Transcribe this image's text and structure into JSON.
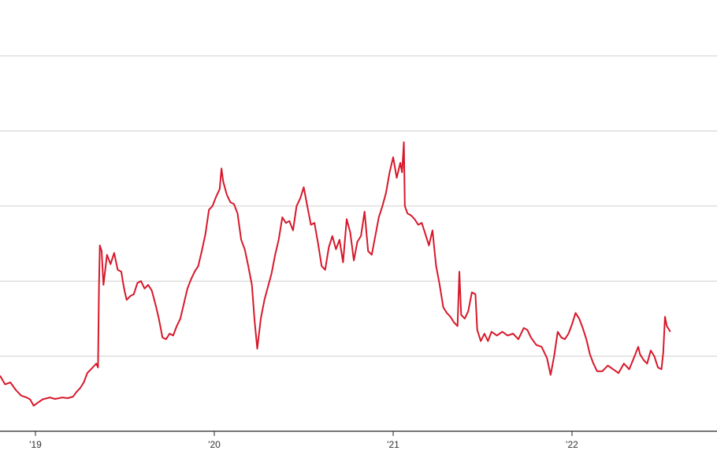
{
  "chart_data": {
    "type": "line",
    "title": "",
    "xlabel": "",
    "ylabel": "",
    "x_tick_labels": [
      "'19",
      "'20",
      "'21",
      "'22"
    ],
    "ylim": [
      0,
      100
    ],
    "grid": "horizontal",
    "colors": {
      "line": "#d7182a",
      "grid": "#cfcfcf",
      "axis": "#222222",
      "background": "#ffffff"
    },
    "series": [
      {
        "values": [
          [
            2018.8,
            14.8
          ],
          [
            2018.83,
            12.5
          ],
          [
            2018.86,
            13.0
          ],
          [
            2018.89,
            11.0
          ],
          [
            2018.92,
            9.5
          ],
          [
            2018.95,
            9.0
          ],
          [
            2018.97,
            8.5
          ],
          [
            2018.99,
            6.8
          ],
          [
            2019.01,
            7.5
          ],
          [
            2019.04,
            8.5
          ],
          [
            2019.08,
            9.0
          ],
          [
            2019.11,
            8.6
          ],
          [
            2019.15,
            9.0
          ],
          [
            2019.18,
            8.8
          ],
          [
            2019.21,
            9.2
          ],
          [
            2019.23,
            10.5
          ],
          [
            2019.25,
            11.5
          ],
          [
            2019.27,
            13.0
          ],
          [
            2019.29,
            15.5
          ],
          [
            2019.31,
            16.5
          ],
          [
            2019.33,
            17.5
          ],
          [
            2019.34,
            18.0
          ],
          [
            2019.35,
            17.0
          ],
          [
            2019.355,
            38.0
          ],
          [
            2019.36,
            49.5
          ],
          [
            2019.37,
            48.0
          ],
          [
            2019.38,
            39.0
          ],
          [
            2019.4,
            47.0
          ],
          [
            2019.42,
            44.5
          ],
          [
            2019.44,
            47.5
          ],
          [
            2019.46,
            43.0
          ],
          [
            2019.48,
            42.5
          ],
          [
            2019.49,
            39.5
          ],
          [
            2019.5,
            37.0
          ],
          [
            2019.51,
            35.0
          ],
          [
            2019.53,
            36.0
          ],
          [
            2019.55,
            36.5
          ],
          [
            2019.57,
            39.5
          ],
          [
            2019.59,
            40.0
          ],
          [
            2019.61,
            38.0
          ],
          [
            2019.63,
            39.0
          ],
          [
            2019.65,
            37.5
          ],
          [
            2019.67,
            34.0
          ],
          [
            2019.69,
            30.0
          ],
          [
            2019.71,
            25.0
          ],
          [
            2019.73,
            24.5
          ],
          [
            2019.75,
            26.0
          ],
          [
            2019.77,
            25.5
          ],
          [
            2019.79,
            28.0
          ],
          [
            2019.81,
            30.0
          ],
          [
            2019.83,
            34.0
          ],
          [
            2019.85,
            38.0
          ],
          [
            2019.87,
            40.5
          ],
          [
            2019.89,
            42.5
          ],
          [
            2019.91,
            44.0
          ],
          [
            2019.93,
            48.0
          ],
          [
            2019.95,
            52.5
          ],
          [
            2019.97,
            59.0
          ],
          [
            2019.99,
            60.0
          ],
          [
            2020.01,
            62.5
          ],
          [
            2020.03,
            64.5
          ],
          [
            2020.04,
            70.0
          ],
          [
            2020.05,
            66.5
          ],
          [
            2020.07,
            63.0
          ],
          [
            2020.09,
            61.0
          ],
          [
            2020.11,
            60.5
          ],
          [
            2020.13,
            58.0
          ],
          [
            2020.15,
            51.0
          ],
          [
            2020.17,
            48.5
          ],
          [
            2020.19,
            44.0
          ],
          [
            2020.21,
            39.0
          ],
          [
            2020.225,
            29.5
          ],
          [
            2020.24,
            22.0
          ],
          [
            2020.26,
            30.0
          ],
          [
            2020.28,
            35.0
          ],
          [
            2020.3,
            38.5
          ],
          [
            2020.32,
            42.0
          ],
          [
            2020.34,
            47.0
          ],
          [
            2020.36,
            51.0
          ],
          [
            2020.38,
            57.0
          ],
          [
            2020.4,
            55.5
          ],
          [
            2020.42,
            56.0
          ],
          [
            2020.44,
            53.5
          ],
          [
            2020.46,
            60.0
          ],
          [
            2020.48,
            62.0
          ],
          [
            2020.5,
            65.0
          ],
          [
            2020.52,
            60.0
          ],
          [
            2020.54,
            55.0
          ],
          [
            2020.56,
            55.5
          ],
          [
            2020.58,
            50.0
          ],
          [
            2020.6,
            44.0
          ],
          [
            2020.62,
            43.0
          ],
          [
            2020.64,
            49.0
          ],
          [
            2020.66,
            52.0
          ],
          [
            2020.68,
            48.5
          ],
          [
            2020.7,
            51.0
          ],
          [
            2020.72,
            45.0
          ],
          [
            2020.74,
            56.5
          ],
          [
            2020.76,
            53.0
          ],
          [
            2020.78,
            45.5
          ],
          [
            2020.8,
            50.5
          ],
          [
            2020.82,
            52.0
          ],
          [
            2020.84,
            58.5
          ],
          [
            2020.86,
            48.0
          ],
          [
            2020.88,
            47.0
          ],
          [
            2020.9,
            52.0
          ],
          [
            2020.92,
            57.0
          ],
          [
            2020.94,
            60.0
          ],
          [
            2020.96,
            63.5
          ],
          [
            2020.98,
            69.0
          ],
          [
            2021.0,
            73.0
          ],
          [
            2021.02,
            67.5
          ],
          [
            2021.04,
            71.5
          ],
          [
            2021.05,
            69.0
          ],
          [
            2021.06,
            77.0
          ],
          [
            2021.065,
            60.0
          ],
          [
            2021.08,
            58.0
          ],
          [
            2021.1,
            57.5
          ],
          [
            2021.12,
            56.5
          ],
          [
            2021.14,
            55.0
          ],
          [
            2021.16,
            55.5
          ],
          [
            2021.18,
            52.5
          ],
          [
            2021.2,
            49.5
          ],
          [
            2021.22,
            53.5
          ],
          [
            2021.24,
            44.0
          ],
          [
            2021.26,
            39.0
          ],
          [
            2021.28,
            33.0
          ],
          [
            2021.3,
            31.5
          ],
          [
            2021.32,
            30.5
          ],
          [
            2021.34,
            29.0
          ],
          [
            2021.36,
            28.0
          ],
          [
            2021.37,
            42.5
          ],
          [
            2021.38,
            31.0
          ],
          [
            2021.4,
            30.0
          ],
          [
            2021.42,
            32.0
          ],
          [
            2021.44,
            37.0
          ],
          [
            2021.46,
            36.5
          ],
          [
            2021.47,
            27.0
          ],
          [
            2021.49,
            24.0
          ],
          [
            2021.51,
            26.0
          ],
          [
            2021.53,
            24.0
          ],
          [
            2021.55,
            26.5
          ],
          [
            2021.58,
            25.5
          ],
          [
            2021.61,
            26.5
          ],
          [
            2021.64,
            25.5
          ],
          [
            2021.67,
            26.0
          ],
          [
            2021.7,
            24.5
          ],
          [
            2021.73,
            27.5
          ],
          [
            2021.75,
            27.0
          ],
          [
            2021.77,
            25.0
          ],
          [
            2021.8,
            23.0
          ],
          [
            2021.83,
            22.5
          ],
          [
            2021.86,
            19.5
          ],
          [
            2021.88,
            15.0
          ],
          [
            2021.9,
            20.0
          ],
          [
            2021.92,
            26.5
          ],
          [
            2021.94,
            25.0
          ],
          [
            2021.96,
            24.5
          ],
          [
            2021.98,
            26.0
          ],
          [
            2022.0,
            28.5
          ],
          [
            2022.02,
            31.5
          ],
          [
            2022.04,
            30.0
          ],
          [
            2022.06,
            27.5
          ],
          [
            2022.08,
            24.5
          ],
          [
            2022.1,
            20.5
          ],
          [
            2022.12,
            18.0
          ],
          [
            2022.14,
            16.0
          ],
          [
            2022.17,
            16.0
          ],
          [
            2022.2,
            17.5
          ],
          [
            2022.23,
            16.5
          ],
          [
            2022.26,
            15.5
          ],
          [
            2022.29,
            18.0
          ],
          [
            2022.32,
            16.5
          ],
          [
            2022.35,
            20.0
          ],
          [
            2022.37,
            22.5
          ],
          [
            2022.38,
            20.5
          ],
          [
            2022.4,
            19.0
          ],
          [
            2022.42,
            18.0
          ],
          [
            2022.44,
            21.5
          ],
          [
            2022.46,
            20.0
          ],
          [
            2022.48,
            17.0
          ],
          [
            2022.5,
            16.5
          ],
          [
            2022.51,
            21.0
          ],
          [
            2022.52,
            30.5
          ],
          [
            2022.53,
            28.0
          ],
          [
            2022.55,
            26.5
          ]
        ]
      }
    ]
  }
}
